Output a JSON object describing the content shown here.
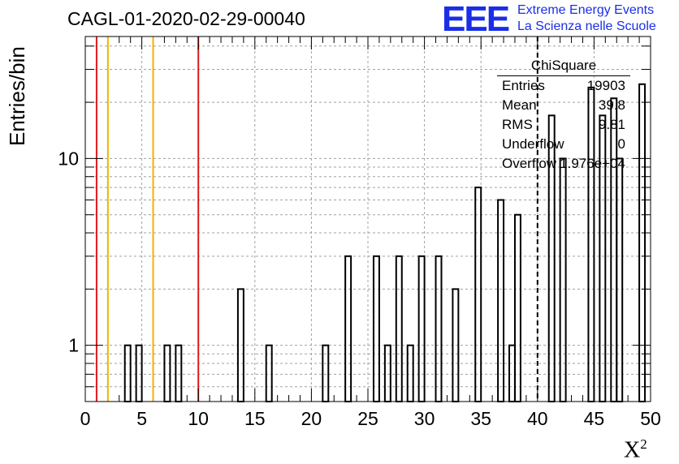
{
  "chart_data": {
    "type": "bar",
    "title": "CAGL-01-2020-02-29-00040",
    "xlabel": "X",
    "xlabel_sup": "2",
    "ylabel": "Entries/bin",
    "x_ticks": [
      "0",
      "5",
      "10",
      "15",
      "20",
      "25",
      "30",
      "35",
      "40",
      "45",
      "50"
    ],
    "y_ticks": [
      "1",
      "10"
    ],
    "xlim": [
      0,
      50
    ],
    "ylim": [
      0.5,
      45
    ],
    "y_scale": "log",
    "grid": true,
    "bin_width": 0.5,
    "bin_starts": [
      3.5,
      4.5,
      7.0,
      8.0,
      13.5,
      16.0,
      21.0,
      23.0,
      25.5,
      26.5,
      27.5,
      28.5,
      29.5,
      31.0,
      32.5,
      34.5,
      36.5,
      37.5,
      38.0,
      41.0,
      42.0,
      44.5,
      45.5,
      46.5,
      47.0,
      49.0
    ],
    "values": [
      1,
      1,
      1,
      1,
      2,
      1,
      1,
      3,
      3,
      1,
      3,
      1,
      3,
      3,
      2,
      7,
      6,
      1,
      5,
      17,
      10,
      24,
      17,
      21,
      10,
      25
    ],
    "vertical_lines": [
      {
        "x": 1,
        "color": "#dd1c1c",
        "style": "solid"
      },
      {
        "x": 2,
        "color": "#f0b400",
        "style": "solid"
      },
      {
        "x": 6,
        "color": "#f0b400",
        "style": "solid"
      },
      {
        "x": 10,
        "color": "#dd1c1c",
        "style": "solid"
      },
      {
        "x": 40,
        "color": "#000000",
        "style": "dashed"
      }
    ],
    "stats": {
      "title": "ChiSquare",
      "rows": [
        {
          "label": "Entries",
          "value": "19903"
        },
        {
          "label": "Mean",
          "value": "39.8"
        },
        {
          "label": "RMS",
          "value": "9.81"
        },
        {
          "label": "Underflow",
          "value": "0"
        },
        {
          "label": "Overflow",
          "value": "1.976e+04"
        }
      ]
    },
    "logo": {
      "mark": "EEE",
      "line1": "Extreme Energy Events",
      "line2": "La Scienza nelle Scuole",
      "color": "#1a2ee8"
    }
  }
}
